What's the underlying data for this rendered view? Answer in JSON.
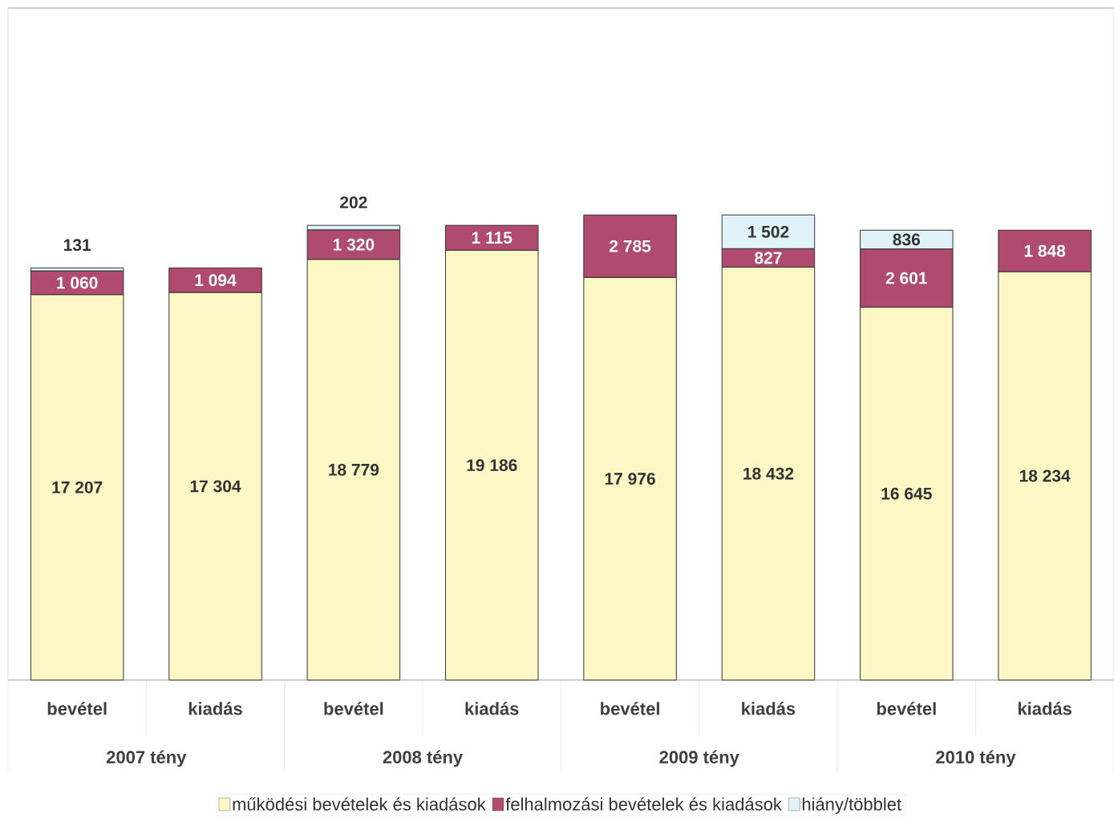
{
  "chart_data": {
    "type": "bar",
    "stacked": true,
    "categories": [
      "bevétel",
      "kiadás",
      "bevétel",
      "kiadás",
      "bevétel",
      "kiadás",
      "bevétel",
      "kiadás"
    ],
    "series": [
      {
        "name": "működési bevételek és kiadások",
        "color": "#fcf7c5",
        "values": [
          17207,
          17304,
          18779,
          19186,
          17976,
          18432,
          16645,
          18234
        ],
        "value_labels": [
          "17 207",
          "17 304",
          "18 779",
          "19 186",
          "17 976",
          "18 432",
          "16 645",
          "18 234"
        ]
      },
      {
        "name": "felhalmozási bevételek és kiadások",
        "color": "#b04a6e",
        "values": [
          1060,
          1094,
          1320,
          1115,
          2785,
          827,
          2601,
          1848
        ],
        "value_labels": [
          "1 060",
          "1 094",
          "1 320",
          "1 115",
          "2 785",
          "827",
          "2 601",
          "1 848"
        ]
      },
      {
        "name": "hiány/többlet",
        "color": "#e0f3f8",
        "values": [
          131,
          null,
          202,
          null,
          null,
          1502,
          836,
          null
        ],
        "value_labels": [
          "131",
          null,
          "202",
          null,
          null,
          "1 502",
          "836",
          null
        ]
      }
    ],
    "annotations": [
      "2007 tény",
      "2008 tény",
      "2009 tény",
      "2010 tény"
    ],
    "ylim": [
      0,
      30000
    ],
    "legend": "bottom"
  }
}
